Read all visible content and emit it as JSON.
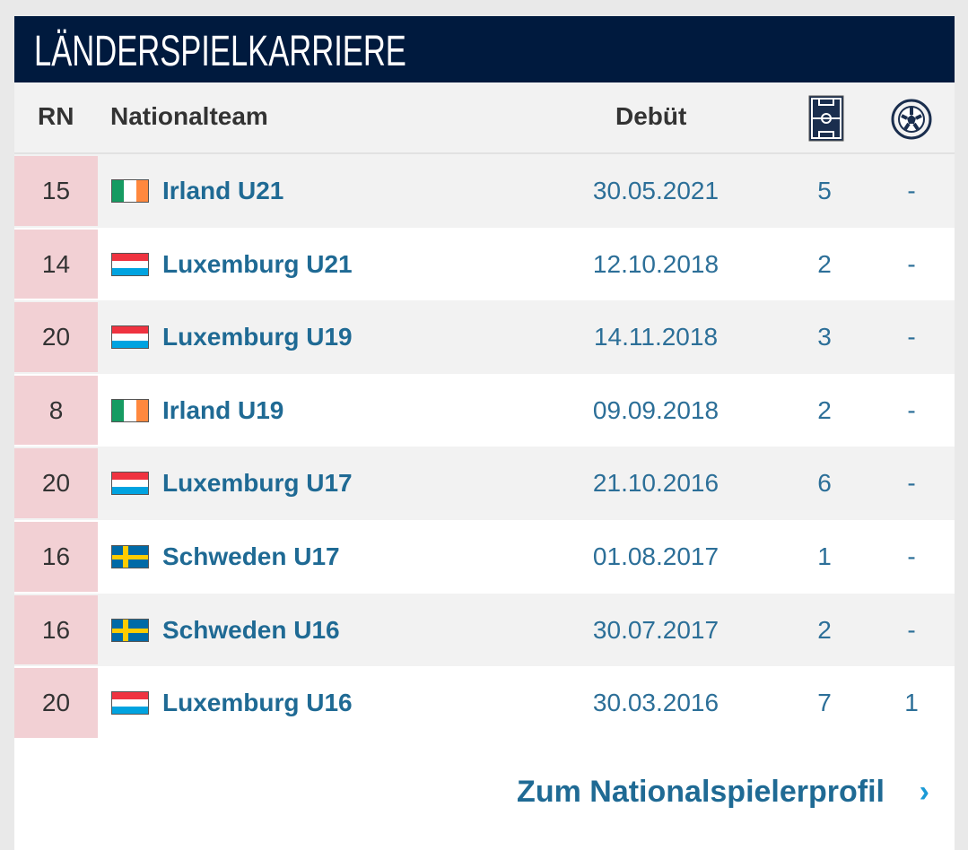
{
  "title": "LÄNDERSPIELKARRIERE",
  "headers": {
    "rn": "RN",
    "team": "Nationalteam",
    "debut": "Debüt",
    "apps_icon": "football-pitch-icon",
    "goals_icon": "football-icon"
  },
  "colors": {
    "header_bg": "#001a3e",
    "link": "#1f6a94",
    "rn_bg": "#f2d0d4"
  },
  "rows": [
    {
      "rn": "15",
      "flag": "ireland",
      "team": "Irland U21",
      "debut": "30.05.2021",
      "apps": "5",
      "goals": "-"
    },
    {
      "rn": "14",
      "flag": "luxembourg",
      "team": "Luxemburg U21",
      "debut": "12.10.2018",
      "apps": "2",
      "goals": "-"
    },
    {
      "rn": "20",
      "flag": "luxembourg",
      "team": "Luxemburg U19",
      "debut": "14.11.2018",
      "apps": "3",
      "goals": "-"
    },
    {
      "rn": "8",
      "flag": "ireland",
      "team": "Irland U19",
      "debut": "09.09.2018",
      "apps": "2",
      "goals": "-"
    },
    {
      "rn": "20",
      "flag": "luxembourg",
      "team": "Luxemburg U17",
      "debut": "21.10.2016",
      "apps": "6",
      "goals": "-"
    },
    {
      "rn": "16",
      "flag": "sweden",
      "team": "Schweden U17",
      "debut": "01.08.2017",
      "apps": "1",
      "goals": "-"
    },
    {
      "rn": "16",
      "flag": "sweden",
      "team": "Schweden U16",
      "debut": "30.07.2017",
      "apps": "2",
      "goals": "-"
    },
    {
      "rn": "20",
      "flag": "luxembourg",
      "team": "Luxemburg U16",
      "debut": "30.03.2016",
      "apps": "7",
      "goals": "1"
    }
  ],
  "footer": {
    "link": "Zum Nationalspielerprofil",
    "chevron": "›"
  }
}
